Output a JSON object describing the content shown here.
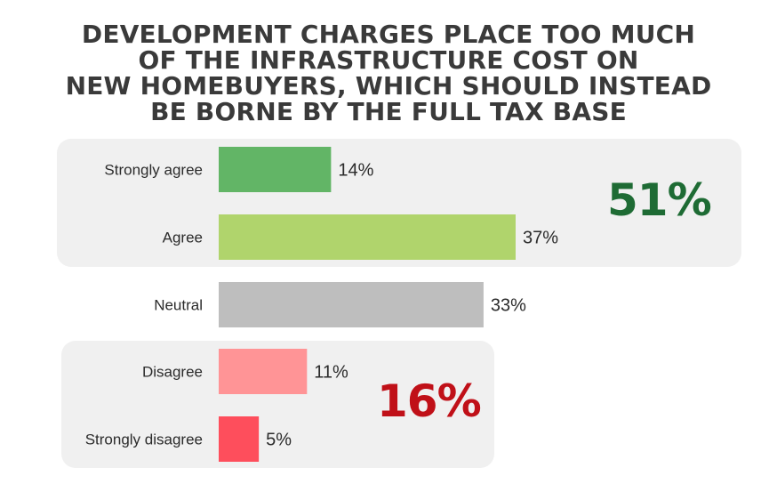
{
  "title_lines": [
    "DEVELOPMENT CHARGES PLACE TOO MUCH",
    "OF THE INFRASTRUCTURE COST ON",
    "NEW HOMEBUYERS, WHICH SHOULD INSTEAD",
    "BE BORNE BY THE FULL TAX BASE"
  ],
  "groups": {
    "agree_total": "51%",
    "disagree_total": "16%"
  },
  "colors": {
    "agree_total": "#1e6b34",
    "disagree_total": "#c01018"
  },
  "chart_data": {
    "type": "bar",
    "orientation": "horizontal",
    "title": "DEVELOPMENT CHARGES PLACE TOO MUCH OF THE INFRASTRUCTURE COST ON NEW HOMEBUYERS, WHICH SHOULD INSTEAD BE BORNE BY THE FULL TAX BASE",
    "categories": [
      "Strongly agree",
      "Agree",
      "Neutral",
      "Disagree",
      "Strongly disagree"
    ],
    "values": [
      14,
      37,
      33,
      11,
      5
    ],
    "value_labels": [
      "14%",
      "37%",
      "33%",
      "11%",
      "5%"
    ],
    "colors": [
      "#62b566",
      "#b0d46c",
      "#bebebe",
      "#ff9496",
      "#fe4e5c"
    ],
    "xlim": [
      0,
      37
    ],
    "grid": false,
    "legend": "none"
  }
}
